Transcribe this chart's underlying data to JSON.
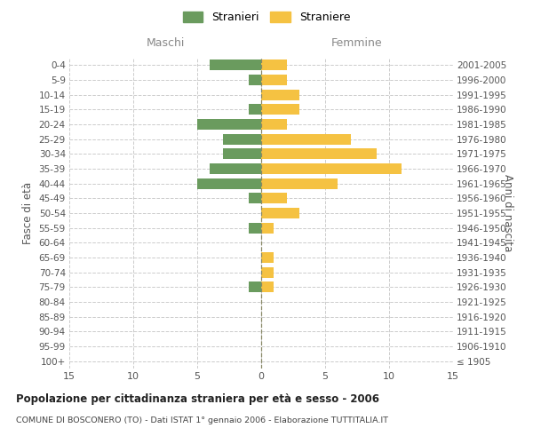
{
  "age_groups": [
    "100+",
    "95-99",
    "90-94",
    "85-89",
    "80-84",
    "75-79",
    "70-74",
    "65-69",
    "60-64",
    "55-59",
    "50-54",
    "45-49",
    "40-44",
    "35-39",
    "30-34",
    "25-29",
    "20-24",
    "15-19",
    "10-14",
    "5-9",
    "0-4"
  ],
  "birth_years": [
    "≤ 1905",
    "1906-1910",
    "1911-1915",
    "1916-1920",
    "1921-1925",
    "1926-1930",
    "1931-1935",
    "1936-1940",
    "1941-1945",
    "1946-1950",
    "1951-1955",
    "1956-1960",
    "1961-1965",
    "1966-1970",
    "1971-1975",
    "1976-1980",
    "1981-1985",
    "1986-1990",
    "1991-1995",
    "1996-2000",
    "2001-2005"
  ],
  "males": [
    0,
    0,
    0,
    0,
    0,
    1,
    0,
    0,
    0,
    1,
    0,
    1,
    5,
    4,
    3,
    3,
    5,
    1,
    0,
    1,
    4
  ],
  "females": [
    0,
    0,
    0,
    0,
    0,
    1,
    1,
    1,
    0,
    1,
    3,
    2,
    6,
    11,
    9,
    7,
    2,
    3,
    3,
    2,
    2
  ],
  "male_color": "#6a9b5e",
  "female_color": "#f5c242",
  "background_color": "#ffffff",
  "grid_color": "#cccccc",
  "center_line_color": "#888866",
  "title": "Popolazione per cittadinanza straniera per età e sesso - 2006",
  "subtitle": "COMUNE DI BOSCONERO (TO) - Dati ISTAT 1° gennaio 2006 - Elaborazione TUTTITALIA.IT",
  "ylabel_left": "Fasce di età",
  "ylabel_right": "Anni di nascita",
  "xlabel_left": "Maschi",
  "xlabel_right": "Femmine",
  "xlim": 15,
  "legend_male": "Stranieri",
  "legend_female": "Straniere"
}
